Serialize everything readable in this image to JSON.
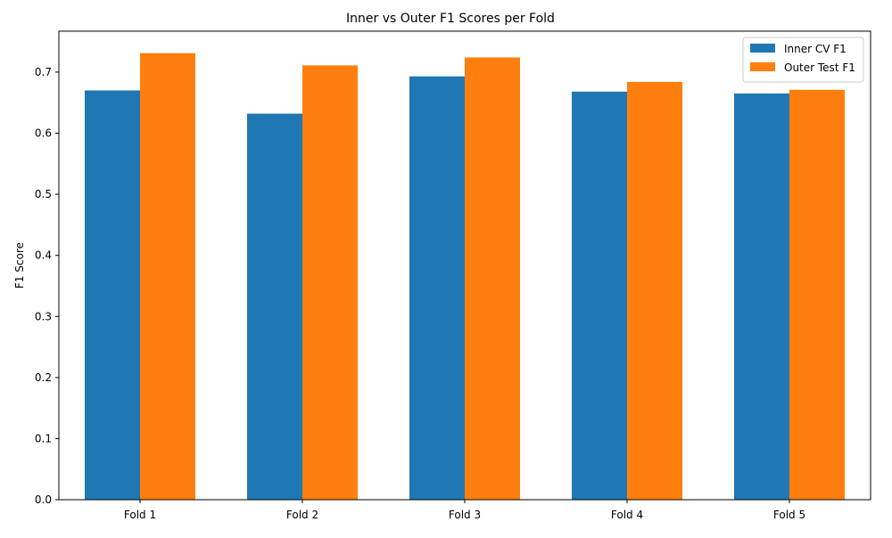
{
  "chart_data": {
    "type": "bar",
    "title": "Inner vs Outer F1 Scores per Fold",
    "xlabel": "",
    "ylabel": "F1 Score",
    "categories": [
      "Fold 1",
      "Fold 2",
      "Fold 3",
      "Fold 4",
      "Fold 5"
    ],
    "series": [
      {
        "name": "Inner CV F1",
        "color": "#1f77b4",
        "values": [
          0.67,
          0.632,
          0.693,
          0.668,
          0.665
        ]
      },
      {
        "name": "Outer Test F1",
        "color": "#ff7f0e",
        "values": [
          0.731,
          0.711,
          0.724,
          0.684,
          0.671
        ]
      }
    ],
    "ylim": [
      0,
      0.767
    ],
    "yticks": [
      "0.0",
      "0.1",
      "0.2",
      "0.3",
      "0.4",
      "0.5",
      "0.6",
      "0.7"
    ],
    "grid": false,
    "legend_position": "top-right"
  }
}
